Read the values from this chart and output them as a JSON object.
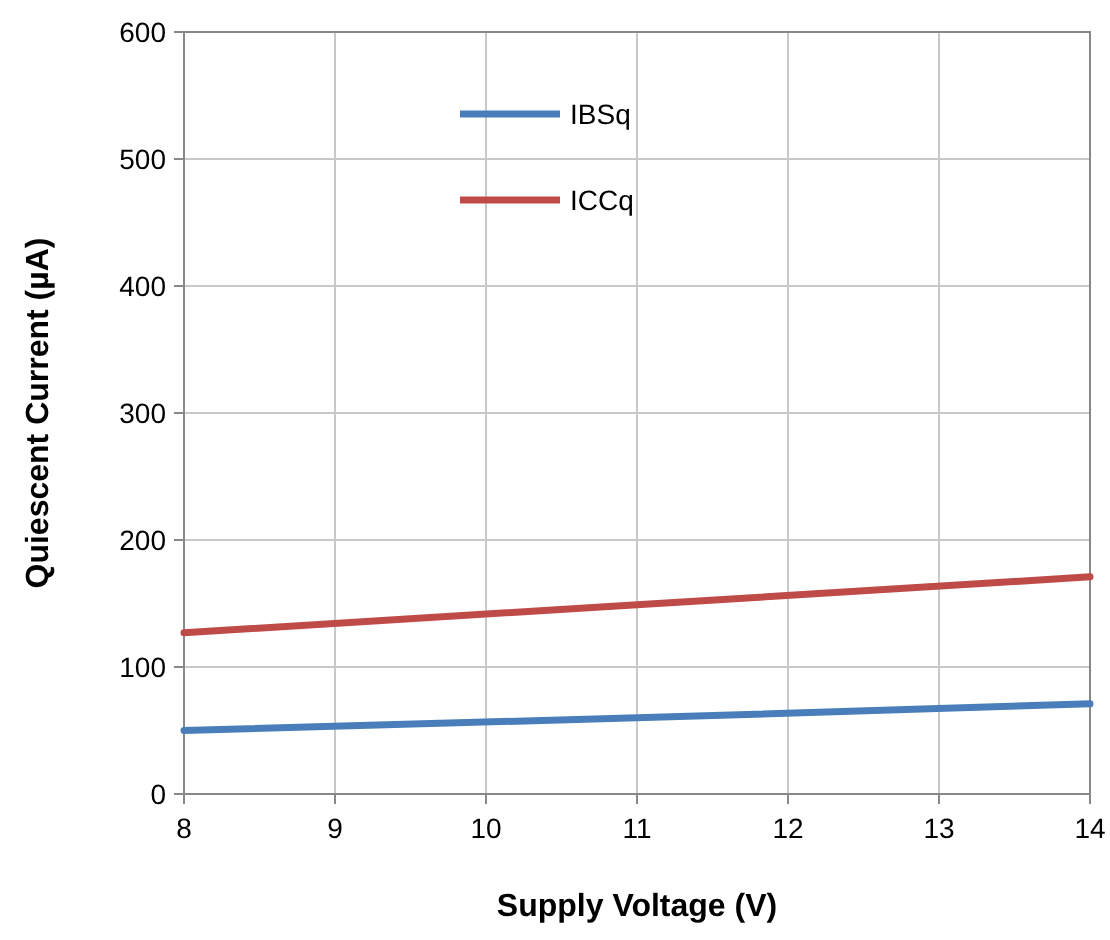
{
  "chart_data": {
    "type": "line",
    "xlabel": "Supply Voltage (V)",
    "ylabel": "Quiescent Current (µA)",
    "x": [
      8,
      11,
      14
    ],
    "series": [
      {
        "name": "IBSq",
        "color": "#4a7ebb",
        "values": [
          50,
          60,
          71
        ]
      },
      {
        "name": "ICCq",
        "color": "#be4b48",
        "values": [
          127,
          149,
          171
        ]
      }
    ],
    "xlim": [
      8,
      14
    ],
    "xticks": [
      8,
      9,
      10,
      11,
      12,
      13,
      14
    ],
    "ylim": [
      0,
      600
    ],
    "yticks": [
      0,
      100,
      200,
      300,
      400,
      500,
      600
    ],
    "grid": true,
    "legend": "top",
    "line_style": "solid",
    "marker": "none"
  }
}
